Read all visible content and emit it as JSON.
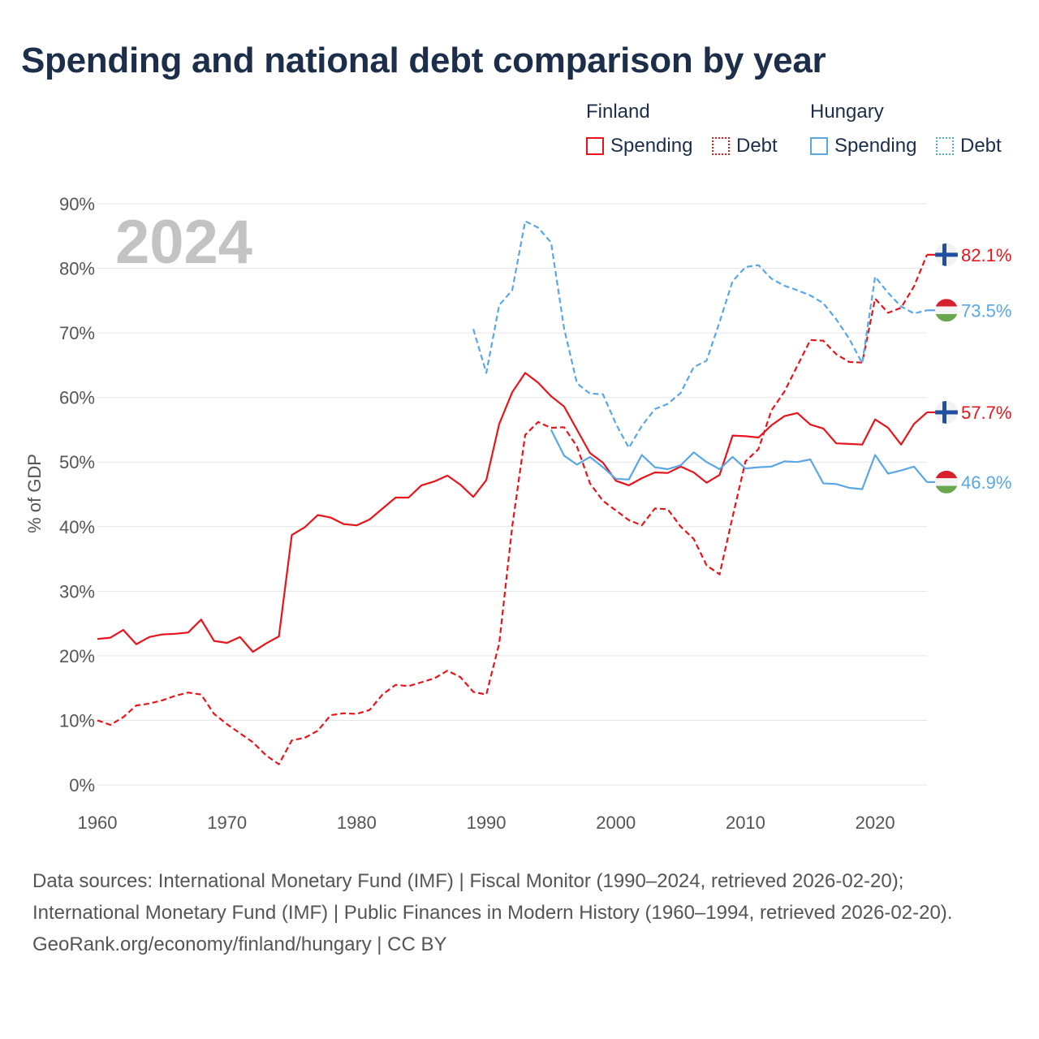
{
  "title": "Spending and national debt comparison by year",
  "legend": {
    "groups": [
      {
        "name": "Finland",
        "color": "#e8141c",
        "spending_label": "Spending",
        "debt_label": "Debt"
      },
      {
        "name": "Hungary",
        "color": "#5aa6e6",
        "spending_label": "Spending",
        "debt_label": "Debt"
      }
    ]
  },
  "chart_data": {
    "type": "line",
    "year_watermark": "2024",
    "ylabel": "% of GDP",
    "xlim": [
      1960,
      2024
    ],
    "ylim": [
      0,
      90
    ],
    "x_ticks": [
      "1960",
      "1970",
      "1980",
      "1990",
      "2000",
      "2010",
      "2020"
    ],
    "y_ticks": [
      "0%",
      "10%",
      "20%",
      "30%",
      "40%",
      "50%",
      "60%",
      "70%",
      "80%",
      "90%"
    ],
    "series": [
      {
        "name": "Finland Spending",
        "country": "Finland",
        "kind": "spending",
        "color": "#e8141c",
        "dashed": false,
        "end_label": "57.7%",
        "x": [
          1960,
          1961,
          1962,
          1963,
          1964,
          1965,
          1966,
          1967,
          1968,
          1969,
          1970,
          1971,
          1972,
          1973,
          1974,
          1975,
          1976,
          1977,
          1978,
          1979,
          1980,
          1981,
          1982,
          1983,
          1984,
          1985,
          1986,
          1987,
          1988,
          1989,
          1990,
          1991,
          1992,
          1993,
          1994,
          1995,
          1996,
          1997,
          1998,
          1999,
          2000,
          2001,
          2002,
          2003,
          2004,
          2005,
          2006,
          2007,
          2008,
          2009,
          2010,
          2011,
          2012,
          2013,
          2014,
          2015,
          2016,
          2017,
          2018,
          2019,
          2020,
          2021,
          2022,
          2023,
          2024
        ],
        "values": [
          22.6,
          22.8,
          24.0,
          21.8,
          22.9,
          23.3,
          23.4,
          23.6,
          25.6,
          22.3,
          22.0,
          22.9,
          20.6,
          21.9,
          23.0,
          38.7,
          39.9,
          41.8,
          41.4,
          40.4,
          40.2,
          41.1,
          42.8,
          44.5,
          44.5,
          46.4,
          47.0,
          47.9,
          46.5,
          44.6,
          47.2,
          55.9,
          60.8,
          63.8,
          62.3,
          60.2,
          58.6,
          55.0,
          51.4,
          49.9,
          47.1,
          46.4,
          47.5,
          48.4,
          48.3,
          49.3,
          48.4,
          46.8,
          48.0,
          54.1,
          54.0,
          53.8,
          55.7,
          57.1,
          57.6,
          55.8,
          55.2,
          52.9,
          52.8,
          52.7,
          56.6,
          55.3,
          52.7,
          55.9,
          57.7
        ]
      },
      {
        "name": "Finland Debt",
        "country": "Finland",
        "kind": "debt",
        "color": "#e8141c",
        "dashed": true,
        "end_label": "82.1%",
        "x": [
          1960,
          1961,
          1962,
          1963,
          1964,
          1965,
          1966,
          1967,
          1968,
          1969,
          1970,
          1971,
          1972,
          1973,
          1974,
          1975,
          1976,
          1977,
          1978,
          1979,
          1980,
          1981,
          1982,
          1983,
          1984,
          1985,
          1986,
          1987,
          1988,
          1989,
          1990,
          1991,
          1992,
          1993,
          1994,
          1995,
          1996,
          1997,
          1998,
          1999,
          2000,
          2001,
          2002,
          2003,
          2004,
          2005,
          2006,
          2007,
          2008,
          2009,
          2010,
          2011,
          2012,
          2013,
          2014,
          2015,
          2016,
          2017,
          2018,
          2019,
          2020,
          2021,
          2022,
          2023,
          2024
        ],
        "values": [
          10.0,
          9.3,
          10.5,
          12.3,
          12.6,
          13.1,
          13.8,
          14.3,
          14.0,
          11.0,
          9.4,
          8.0,
          6.6,
          4.6,
          3.2,
          6.9,
          7.3,
          8.4,
          10.8,
          11.1,
          11.0,
          11.6,
          14.0,
          15.5,
          15.3,
          15.9,
          16.5,
          17.7,
          16.7,
          14.4,
          14.0,
          21.9,
          40.0,
          54.2,
          56.2,
          55.3,
          55.4,
          52.4,
          46.7,
          44.0,
          42.5,
          41.0,
          40.2,
          42.8,
          42.7,
          40.0,
          38.1,
          34.0,
          32.6,
          41.5,
          50.1,
          52.0,
          58.0,
          60.9,
          64.9,
          68.9,
          68.8,
          66.7,
          65.5,
          65.4,
          75.3,
          73.1,
          73.9,
          77.2,
          82.1
        ]
      },
      {
        "name": "Hungary Spending",
        "country": "Hungary",
        "kind": "spending",
        "color": "#5aa6e6",
        "dashed": false,
        "end_label": "46.9%",
        "x": [
          1995,
          1996,
          1997,
          1998,
          1999,
          2000,
          2001,
          2002,
          2003,
          2004,
          2005,
          2006,
          2007,
          2008,
          2009,
          2010,
          2011,
          2012,
          2013,
          2014,
          2015,
          2016,
          2017,
          2018,
          2019,
          2020,
          2021,
          2022,
          2023,
          2024
        ],
        "values": [
          55.0,
          51.0,
          49.6,
          50.8,
          49.2,
          47.4,
          47.3,
          51.1,
          49.2,
          48.9,
          49.5,
          51.5,
          50.0,
          48.9,
          50.8,
          49.0,
          49.2,
          49.3,
          50.1,
          50.0,
          50.4,
          46.7,
          46.6,
          46.0,
          45.8,
          51.1,
          48.2,
          48.7,
          49.3,
          46.9
        ]
      },
      {
        "name": "Hungary Debt",
        "country": "Hungary",
        "kind": "debt",
        "color": "#5aa6e6",
        "dashed": true,
        "end_label": "73.5%",
        "x": [
          1989,
          1990,
          1991,
          1992,
          1993,
          1994,
          1995,
          1996,
          1997,
          1998,
          1999,
          2000,
          2001,
          2002,
          2003,
          2004,
          2005,
          2006,
          2007,
          2008,
          2009,
          2010,
          2011,
          2012,
          2013,
          2014,
          2015,
          2016,
          2017,
          2018,
          2019,
          2020,
          2021,
          2022,
          2023,
          2024
        ],
        "values": [
          70.6,
          63.8,
          74.3,
          76.6,
          87.3,
          86.3,
          84.0,
          70.7,
          62.2,
          60.6,
          60.5,
          55.9,
          52.2,
          55.6,
          58.2,
          59.0,
          60.7,
          64.7,
          65.7,
          71.7,
          78.0,
          80.2,
          80.5,
          78.4,
          77.3,
          76.6,
          75.8,
          74.6,
          72.1,
          69.1,
          65.3,
          78.7,
          76.2,
          74.1,
          73.0,
          73.5
        ]
      }
    ]
  },
  "footer": {
    "sources": "Data sources: International Monetary Fund (IMF) | Fiscal Monitor (1990–2024, retrieved 2026-02-20); International Monetary Fund (IMF) | Public Finances in Modern History (1960–1994, retrieved 2026-02-20).",
    "credit": "GeoRank.org/economy/finland/hungary | CC BY"
  }
}
